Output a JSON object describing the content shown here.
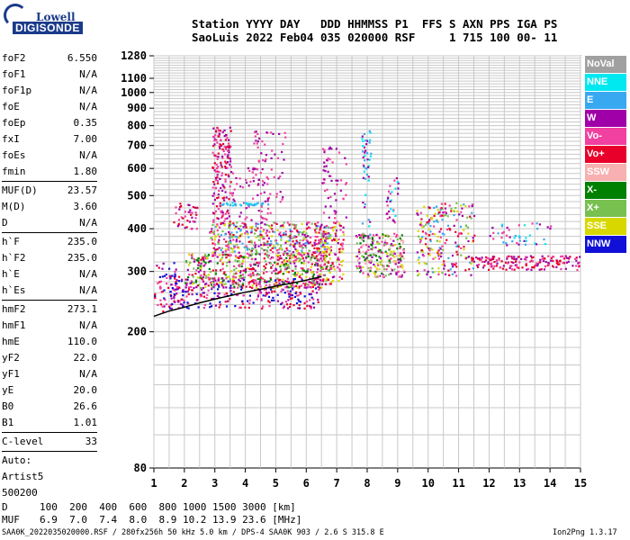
{
  "logo": {
    "top": "Lowell",
    "bottom": "DIGISONDE"
  },
  "header": {
    "line1": "Station YYYY DAY   DDD HHMMSS P1  FFS S AXN PPS IGA PS",
    "line2": "SaoLuis 2022 Feb04 035 020000 RSF     1 715 100 00- 11"
  },
  "params": [
    {
      "k": "foF2",
      "v": "6.550"
    },
    {
      "k": "foF1",
      "v": "N/A"
    },
    {
      "k": "foF1p",
      "v": "N/A"
    },
    {
      "k": "foE",
      "v": "N/A"
    },
    {
      "k": "foEp",
      "v": "0.35"
    },
    {
      "k": "fxI",
      "v": "7.00"
    },
    {
      "k": "foEs",
      "v": "N/A"
    },
    {
      "k": "fmin",
      "v": "1.80"
    },
    {
      "sep": true
    },
    {
      "k": "MUF(D)",
      "v": "23.57"
    },
    {
      "k": "M(D)",
      "v": "3.60"
    },
    {
      "k": "D",
      "v": "N/A"
    },
    {
      "sep": true
    },
    {
      "k": "h`F",
      "v": "235.0"
    },
    {
      "k": "h`F2",
      "v": "235.0"
    },
    {
      "k": "h`E",
      "v": "N/A"
    },
    {
      "k": "h`Es",
      "v": "N/A"
    },
    {
      "sep": true
    },
    {
      "k": "hmF2",
      "v": "273.1"
    },
    {
      "k": "hmF1",
      "v": "N/A"
    },
    {
      "k": "hmE",
      "v": "110.0"
    },
    {
      "k": "yF2",
      "v": "22.0"
    },
    {
      "k": "yF1",
      "v": "N/A"
    },
    {
      "k": "yE",
      "v": "20.0"
    },
    {
      "k": "B0",
      "v": "26.6"
    },
    {
      "k": "B1",
      "v": "1.01"
    },
    {
      "sep": true
    },
    {
      "k": "C-level",
      "v": "33"
    },
    {
      "sep": true
    },
    {
      "k": "Auto:",
      "v": ""
    },
    {
      "k": "Artist5",
      "v": ""
    },
    {
      "k": "500200",
      "v": ""
    }
  ],
  "legend": [
    {
      "label": "NoVal",
      "color": "#a0a0a0"
    },
    {
      "label": "NNE",
      "color": "#00e8f0"
    },
    {
      "label": "E",
      "color": "#38a8f0"
    },
    {
      "label": "W",
      "color": "#a000a8"
    },
    {
      "label": "Vo-",
      "color": "#f040a0"
    },
    {
      "label": "Vo+",
      "color": "#e8002a"
    },
    {
      "label": "SSW",
      "color": "#f8b0b0"
    },
    {
      "label": "X-",
      "color": "#008000"
    },
    {
      "label": "X+",
      "color": "#78c050"
    },
    {
      "label": "SSE",
      "color": "#d8d800"
    },
    {
      "label": "NNW",
      "color": "#1010d8"
    }
  ],
  "bottom": {
    "d_label": "D",
    "d_values": "100  200  400  600  800 1000 1500 3000 [km]",
    "muf_label": "MUF",
    "muf_values": "6.9  7.0  7.4  8.0  8.9 10.2 13.9 23.6 [MHz]"
  },
  "footer": {
    "left": "SAA0K_2022035020000.RSF / 280fx256h 50 kHz 5.0 km / DPS-4 SAA0K 903 / 2.6 S 315.8 E",
    "right": "Ion2Png 1.3.17"
  },
  "chart_data": {
    "type": "scatter",
    "title": "",
    "xlabel": "",
    "ylabel": "",
    "xlim": [
      1,
      15
    ],
    "ylim": [
      80,
      1280
    ],
    "y_scale": "log",
    "x_ticks": [
      1,
      2,
      3,
      4,
      5,
      6,
      7,
      8,
      9,
      10,
      11,
      12,
      13,
      14,
      15
    ],
    "y_ticks": [
      80,
      200,
      300,
      400,
      500,
      600,
      700,
      800,
      900,
      1000,
      1100,
      1280
    ],
    "grid": true,
    "legend_position": "right",
    "trace": {
      "name": "",
      "x": [
        1.0,
        1.5,
        2.0,
        2.5,
        3.0,
        3.5,
        4.0,
        4.5,
        5.0,
        5.5,
        6.0,
        6.5
      ],
      "y": [
        222,
        230,
        236,
        243,
        249,
        255,
        261,
        266,
        272,
        277,
        283,
        290
      ]
    },
    "clusters": [
      {
        "x": [
          1.0,
          1.8
        ],
        "y": [
          230,
          320
        ],
        "n": 60,
        "colors": [
          "#a000a8",
          "#1010d8",
          "#e8002a",
          "#f040a0"
        ]
      },
      {
        "x": [
          1.6,
          2.4
        ],
        "y": [
          400,
          480
        ],
        "n": 40,
        "colors": [
          "#a000a8",
          "#f040a0",
          "#e8002a"
        ]
      },
      {
        "x": [
          1.5,
          6.5
        ],
        "y": [
          235,
          290
        ],
        "n": 320,
        "colors": [
          "#1010d8",
          "#a000a8",
          "#e8002a",
          "#f040a0"
        ]
      },
      {
        "x": [
          2.0,
          6.8
        ],
        "y": [
          270,
          340
        ],
        "n": 520,
        "colors": [
          "#f040a0",
          "#a000a8",
          "#008000",
          "#e8002a",
          "#d8d800",
          "#78c050"
        ]
      },
      {
        "x": [
          2.8,
          6.8
        ],
        "y": [
          340,
          420
        ],
        "n": 420,
        "colors": [
          "#a000a8",
          "#f040a0",
          "#d8d800",
          "#e8002a",
          "#38a8f0",
          "#78c050"
        ]
      },
      {
        "x": [
          2.9,
          3.5
        ],
        "y": [
          420,
          800
        ],
        "n": 160,
        "colors": [
          "#a000a8",
          "#f040a0",
          "#e8002a"
        ]
      },
      {
        "x": [
          3.5,
          4.8
        ],
        "y": [
          420,
          620
        ],
        "n": 60,
        "colors": [
          "#a000a8",
          "#f040a0"
        ]
      },
      {
        "x": [
          4.2,
          5.3
        ],
        "y": [
          480,
          780
        ],
        "n": 55,
        "colors": [
          "#a000a8",
          "#f040a0"
        ]
      },
      {
        "x": [
          3.2,
          4.8
        ],
        "y": [
          470,
          480
        ],
        "n": 35,
        "colors": [
          "#00e8f0",
          "#38a8f0"
        ]
      },
      {
        "x": [
          6.3,
          7.2
        ],
        "y": [
          280,
          420
        ],
        "n": 130,
        "colors": [
          "#f040a0",
          "#e8002a",
          "#a000a8",
          "#d8d800"
        ]
      },
      {
        "x": [
          6.5,
          7.3
        ],
        "y": [
          420,
          700
        ],
        "n": 55,
        "colors": [
          "#a000a8",
          "#f040a0"
        ]
      },
      {
        "x": [
          7.6,
          9.2
        ],
        "y": [
          290,
          390
        ],
        "n": 260,
        "colors": [
          "#f040a0",
          "#a000a8",
          "#d8d800",
          "#78c050",
          "#008000",
          "#f8b0b0"
        ]
      },
      {
        "x": [
          7.8,
          8.1
        ],
        "y": [
          380,
          780
        ],
        "n": 45,
        "colors": [
          "#a000a8",
          "#00e8f0",
          "#38a8f0"
        ]
      },
      {
        "x": [
          8.6,
          9.0
        ],
        "y": [
          420,
          620
        ],
        "n": 30,
        "colors": [
          "#a000a8",
          "#f040a0",
          "#00e8f0"
        ]
      },
      {
        "x": [
          9.6,
          11.5
        ],
        "y": [
          290,
          480
        ],
        "n": 220,
        "colors": [
          "#f040a0",
          "#e8002a",
          "#a000a8",
          "#d8d800",
          "#78c050",
          "#38a8f0"
        ]
      },
      {
        "x": [
          11.2,
          15
        ],
        "y": [
          305,
          335
        ],
        "n": 170,
        "colors": [
          "#f040a0",
          "#a000a8",
          "#e8002a"
        ]
      },
      {
        "x": [
          12.0,
          14.0
        ],
        "y": [
          360,
          420
        ],
        "n": 45,
        "colors": [
          "#38a8f0",
          "#00e8f0",
          "#a000a8",
          "#f040a0"
        ]
      }
    ]
  }
}
